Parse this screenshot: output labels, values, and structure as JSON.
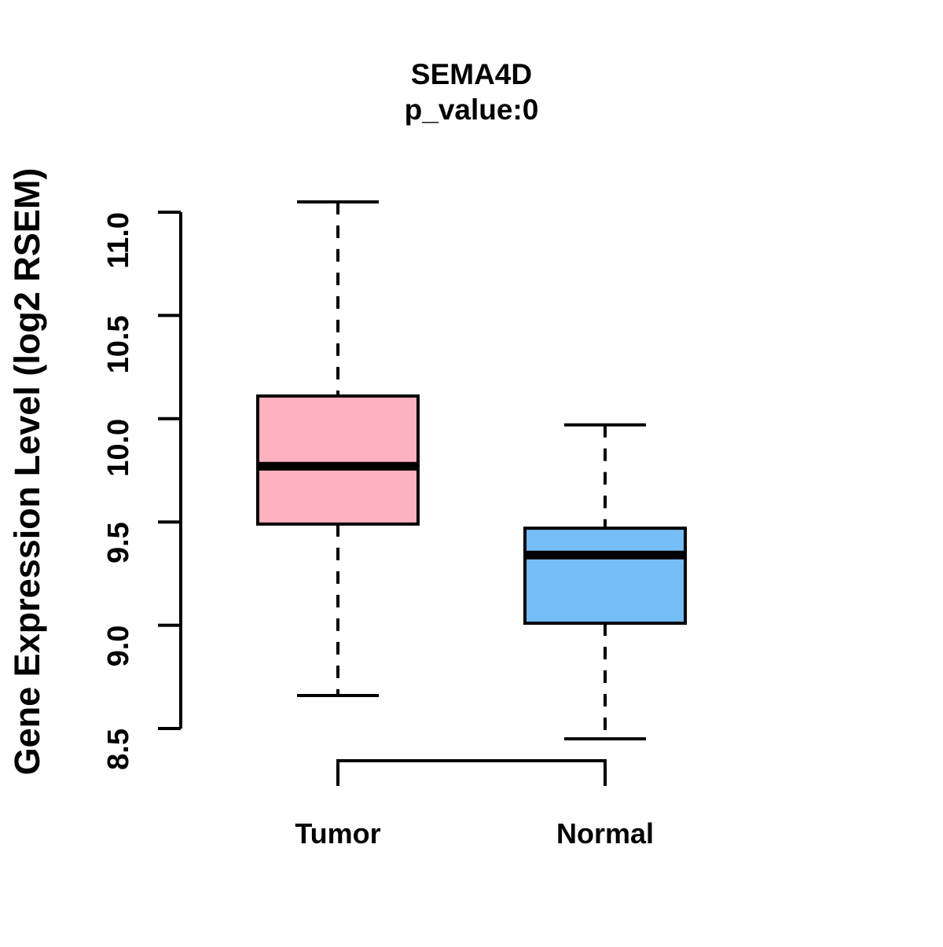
{
  "title": "SEMA4D",
  "subtitle": "p_value:0",
  "colors": {
    "background": "#ffffff",
    "stroke": "#000000",
    "tumor_fill": "#FFB1C1",
    "normal_fill": "#74BDF7"
  },
  "chart_data": {
    "type": "boxplot",
    "title": "SEMA4D",
    "subtitle": "p_value:0",
    "ylabel": "Gene Expression Level (log2 RSEM)",
    "xlabel": "",
    "categories": [
      "Tumor",
      "Normal"
    ],
    "yticks": [
      8.5,
      9.0,
      9.5,
      10.0,
      10.5,
      11.0
    ],
    "ylim": [
      8.45,
      11.05
    ],
    "grid": false,
    "legend": "none",
    "series": [
      {
        "name": "Tumor",
        "color": "#FFB1C1",
        "lower_whisker": 8.66,
        "q1": 9.49,
        "median": 9.77,
        "q3": 10.11,
        "upper_whisker": 11.05
      },
      {
        "name": "Normal",
        "color": "#74BDF7",
        "lower_whisker": 8.45,
        "q1": 9.01,
        "median": 9.34,
        "q3": 9.47,
        "upper_whisker": 9.97
      }
    ]
  }
}
